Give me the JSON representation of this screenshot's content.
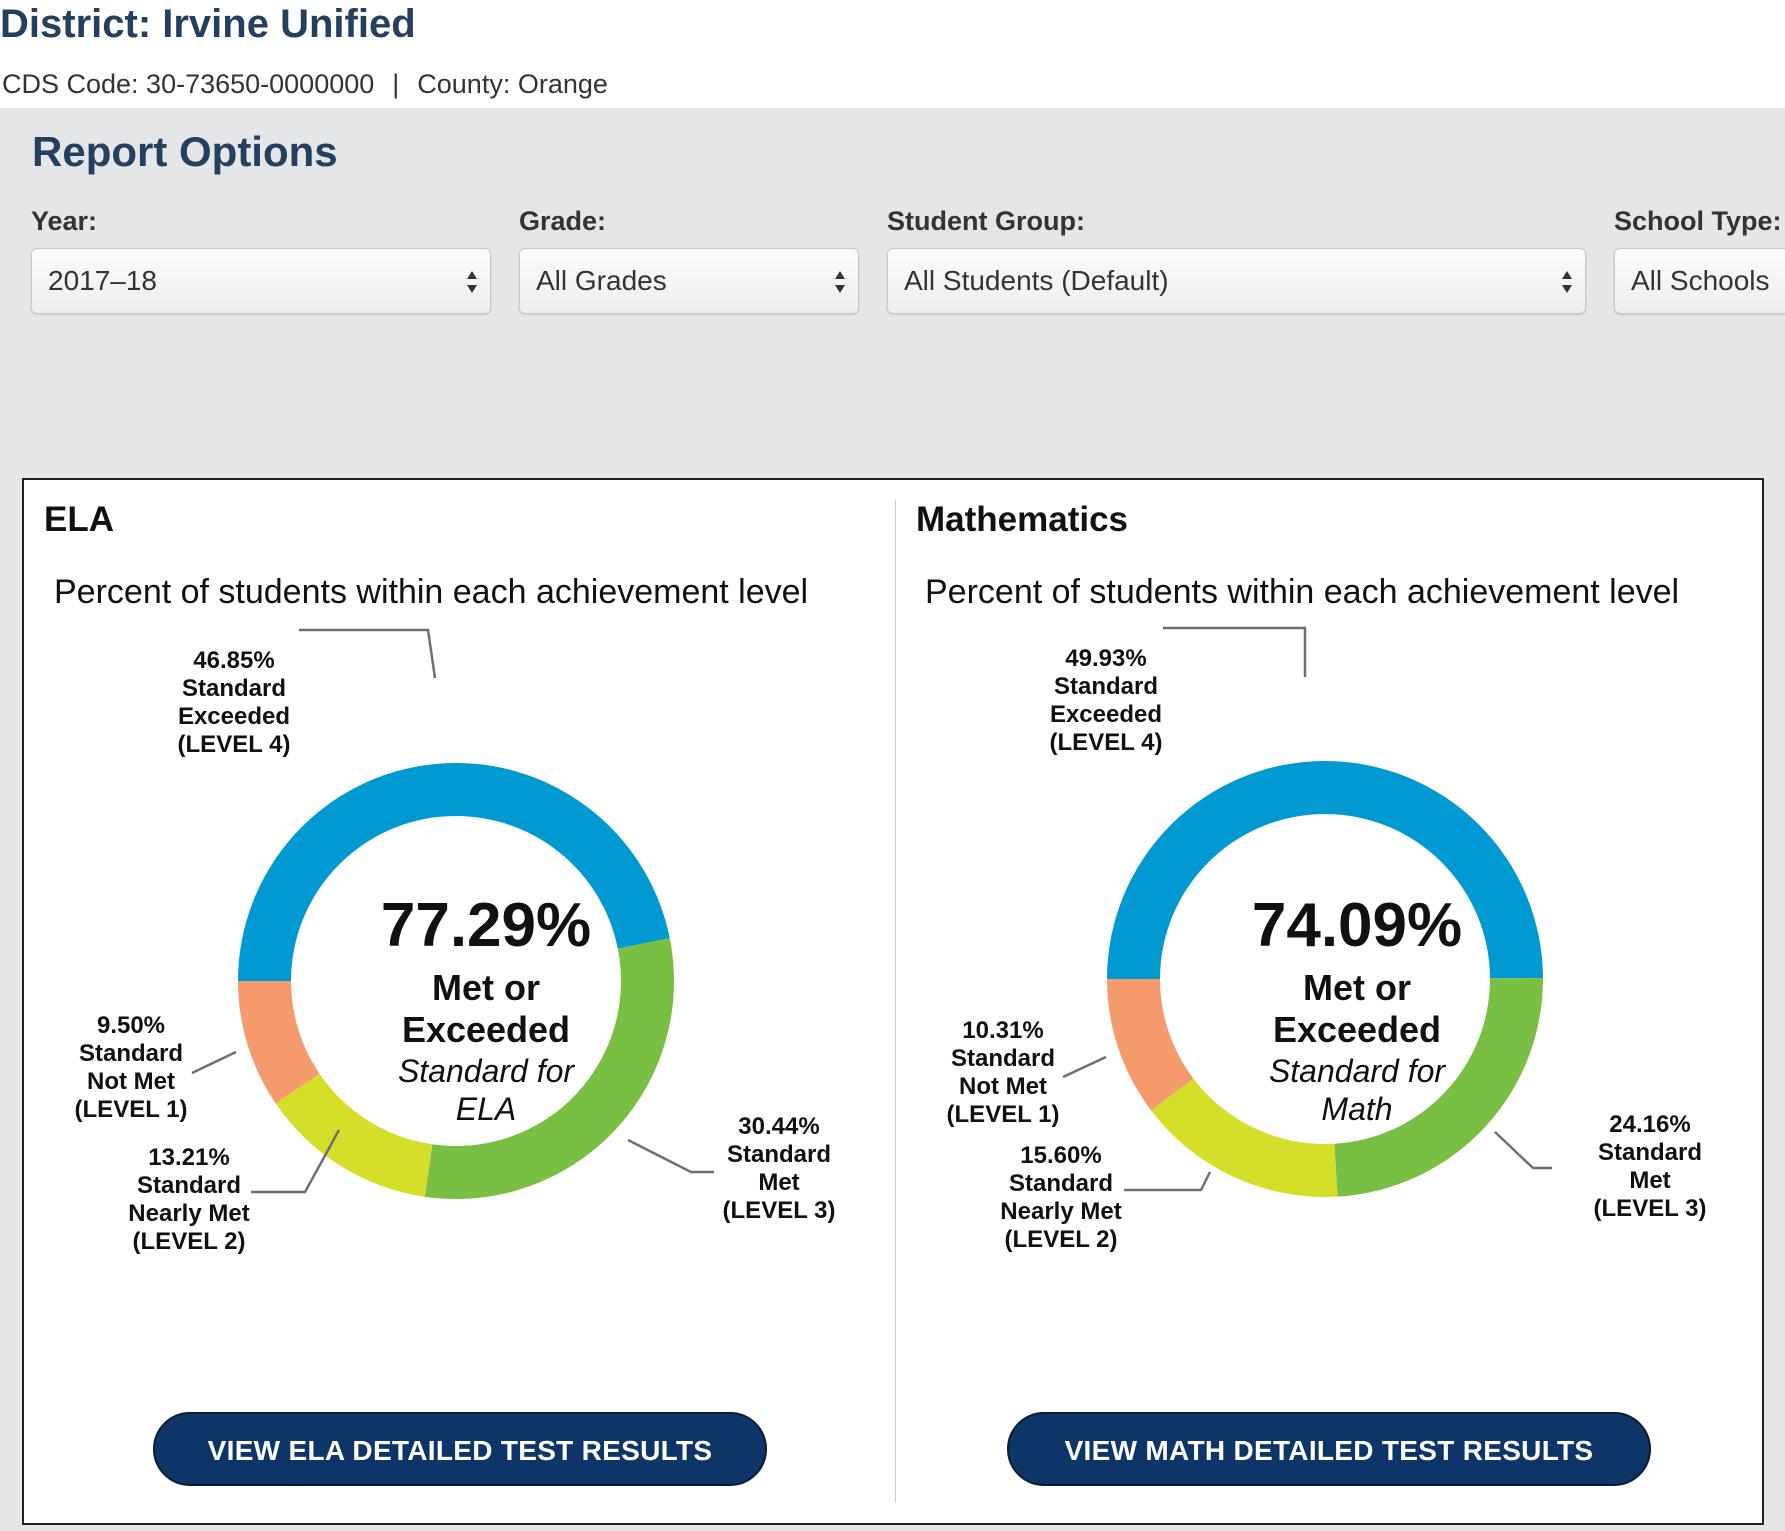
{
  "header": {
    "title": "District: Irvine Unified",
    "cds_code": "CDS Code: 30-73650-0000000",
    "separator": "|",
    "county": "County: Orange"
  },
  "report_options": {
    "title": "Report Options",
    "year": {
      "label": "Year:",
      "value": "2017–18"
    },
    "grade": {
      "label": "Grade:",
      "value": "All Grades"
    },
    "student_group": {
      "label": "Student Group:",
      "value": "All Students (Default)"
    },
    "school_type": {
      "label": "School Type:",
      "value": "All Schools"
    }
  },
  "colors": {
    "exceeded": "#0099d1",
    "met": "#78bf43",
    "nearly_met": "#d5df2a",
    "not_met": "#f59a6c",
    "leader": "#6f6f6f",
    "button": "#0d3567"
  },
  "ela": {
    "title": "ELA",
    "subtitle": "Percent of students within each achievement level",
    "big_pct": "77.29%",
    "met_line1": "Met or",
    "met_line2": "Exceeded",
    "std_line1": "Standard for",
    "std_line2": "ELA",
    "labels": {
      "exceeded": [
        "46.85%",
        "Standard",
        "Exceeded",
        "(LEVEL 4)"
      ],
      "met": [
        "30.44%",
        "Standard",
        "Met",
        "(LEVEL 3)"
      ],
      "nearly": [
        "13.21%",
        "Standard",
        "Nearly Met",
        "(LEVEL 2)"
      ],
      "not_met": [
        "9.50%",
        "Standard",
        "Not Met",
        "(LEVEL 1)"
      ]
    },
    "button": "VIEW ELA DETAILED TEST RESULTS"
  },
  "math": {
    "title": "Mathematics",
    "subtitle": "Percent of students within each achievement level",
    "big_pct": "74.09%",
    "met_line1": "Met or",
    "met_line2": "Exceeded",
    "std_line1": "Standard for",
    "std_line2": "Math",
    "labels": {
      "exceeded": [
        "49.93%",
        "Standard",
        "Exceeded",
        "(LEVEL 4)"
      ],
      "met": [
        "24.16%",
        "Standard",
        "Met",
        "(LEVEL 3)"
      ],
      "nearly": [
        "15.60%",
        "Standard",
        "Nearly Met",
        "(LEVEL 2)"
      ],
      "not_met": [
        "10.31%",
        "Standard",
        "Not Met",
        "(LEVEL 1)"
      ]
    },
    "button": "VIEW MATH DETAILED TEST RESULTS"
  },
  "chart_data": [
    {
      "type": "pie",
      "title": "ELA",
      "subtitle": "Percent of students within each achievement level",
      "categories": [
        "Standard Exceeded (LEVEL 4)",
        "Standard Met (LEVEL 3)",
        "Standard Nearly Met (LEVEL 2)",
        "Standard Not Met (LEVEL 1)"
      ],
      "values": [
        46.85,
        30.44,
        13.21,
        9.5
      ],
      "colors": [
        "#0099d1",
        "#78bf43",
        "#d5df2a",
        "#f59a6c"
      ],
      "center_value": 77.29
    },
    {
      "type": "pie",
      "title": "Mathematics",
      "subtitle": "Percent of students within each achievement level",
      "categories": [
        "Standard Exceeded (LEVEL 4)",
        "Standard Met (LEVEL 3)",
        "Standard Nearly Met (LEVEL 2)",
        "Standard Not Met (LEVEL 1)"
      ],
      "values": [
        49.93,
        24.16,
        15.6,
        10.31
      ],
      "colors": [
        "#0099d1",
        "#78bf43",
        "#d5df2a",
        "#f59a6c"
      ],
      "center_value": 74.09
    }
  ]
}
